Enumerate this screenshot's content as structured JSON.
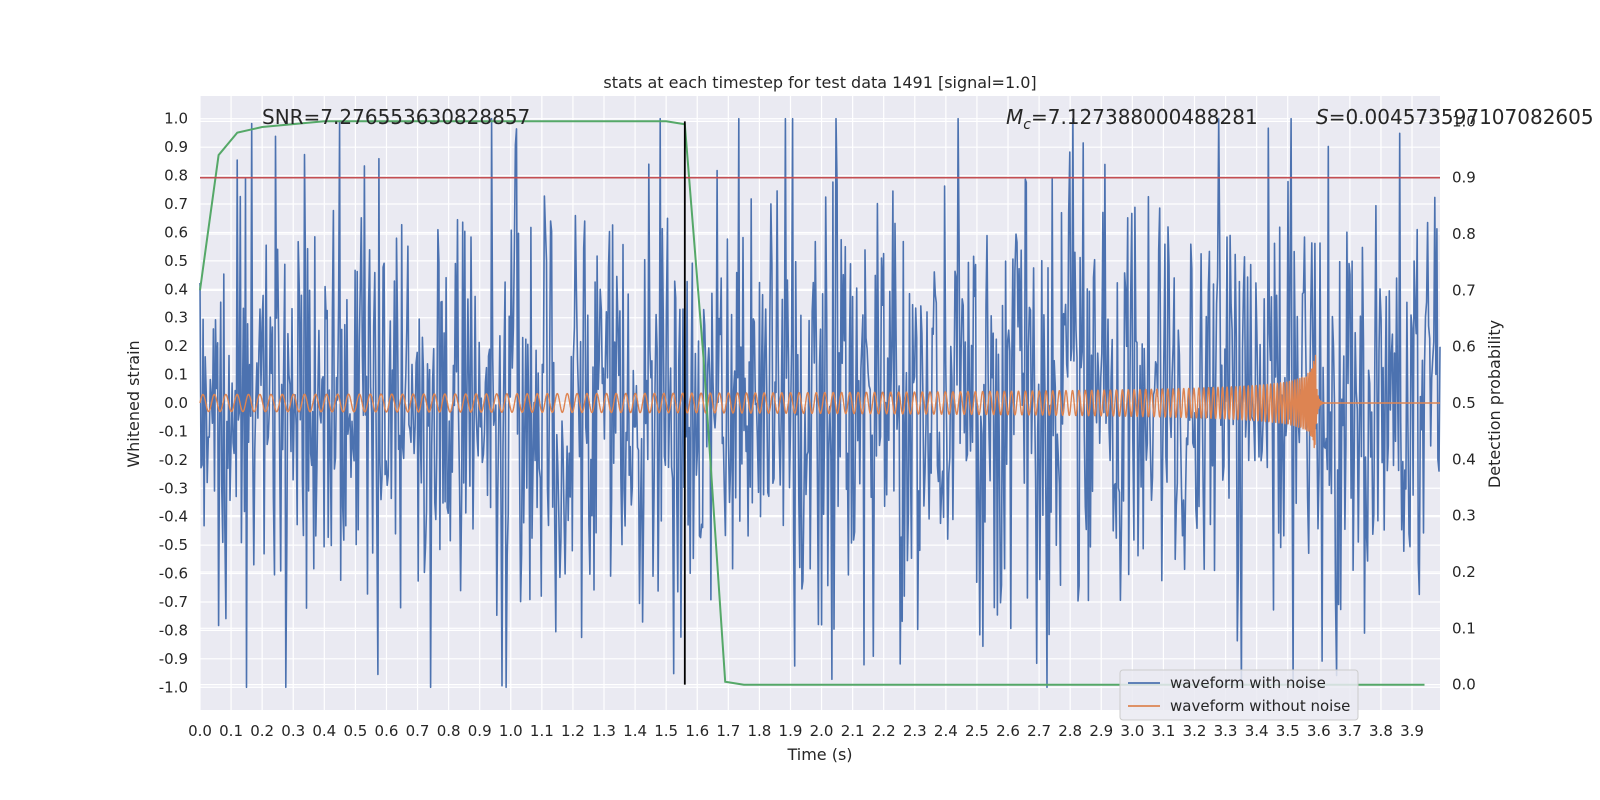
{
  "chart_data": {
    "type": "line",
    "title": "stats at each timestep for test data 1491 [signal=1.0]",
    "xlabel": "Time (s)",
    "ylabel": "Whitened strain",
    "y2label": "Detection probability",
    "xlim": [
      0.0,
      3.99
    ],
    "ylim": [
      -1.08,
      1.08
    ],
    "y2lim": [
      -0.045,
      1.045
    ],
    "x_ticks": [
      "0.0",
      "0.1",
      "0.2",
      "0.3",
      "0.4",
      "0.5",
      "0.6",
      "0.7",
      "0.8",
      "0.9",
      "1.0",
      "1.1",
      "1.2",
      "1.3",
      "1.4",
      "1.5",
      "1.6",
      "1.7",
      "1.8",
      "1.9",
      "2.0",
      "2.1",
      "2.2",
      "2.3",
      "2.4",
      "2.5",
      "2.6",
      "2.7",
      "2.8",
      "2.9",
      "3.0",
      "3.1",
      "3.2",
      "3.3",
      "3.4",
      "3.5",
      "3.6",
      "3.7",
      "3.8",
      "3.9"
    ],
    "y_ticks": [
      "1.0",
      "0.9",
      "0.8",
      "0.7",
      "0.6",
      "0.5",
      "0.4",
      "0.3",
      "0.2",
      "0.1",
      "0.0",
      "-0.1",
      "-0.2",
      "-0.3",
      "-0.4",
      "-0.5",
      "-0.6",
      "-0.7",
      "-0.8",
      "-0.9",
      "-1.0"
    ],
    "y2_ticks": [
      "1.0",
      "0.9",
      "0.8",
      "0.7",
      "0.6",
      "0.5",
      "0.4",
      "0.3",
      "0.2",
      "0.1",
      "0.0"
    ],
    "grid": true,
    "legend_position": "lower-right",
    "annotations": {
      "snr": "SNR=7.276553630828857",
      "mc_symbol": "M",
      "mc_sub": "c",
      "mc_value": "=7.127388000488281",
      "s_symbol": "S",
      "s_value": "=0.004573597107082605"
    },
    "threshold_prob": 0.9,
    "marker_time": 1.56,
    "series": [
      {
        "name": "waveform with noise",
        "color": "#4c72b0",
        "amplitude": 0.38,
        "peak": 1.0
      },
      {
        "name": "waveform without noise",
        "color": "#dd8452",
        "merger_time": 3.59,
        "amp_start": 0.03,
        "amp_peak": 0.17
      },
      {
        "color": "#55a868",
        "axis": "y2",
        "x": [
          0.0,
          0.06,
          0.12,
          0.2,
          0.4,
          0.8,
          1.2,
          1.5,
          1.56,
          1.62,
          1.69,
          1.75,
          2.0,
          2.5,
          3.0,
          3.4,
          3.8,
          3.94
        ],
        "y": [
          0.7,
          0.94,
          0.98,
          0.99,
          1.0,
          1.0,
          1.0,
          1.0,
          0.995,
          0.58,
          0.005,
          0.0,
          0.0,
          0.0,
          0.0,
          0.0,
          0.0,
          0.0
        ]
      }
    ]
  }
}
